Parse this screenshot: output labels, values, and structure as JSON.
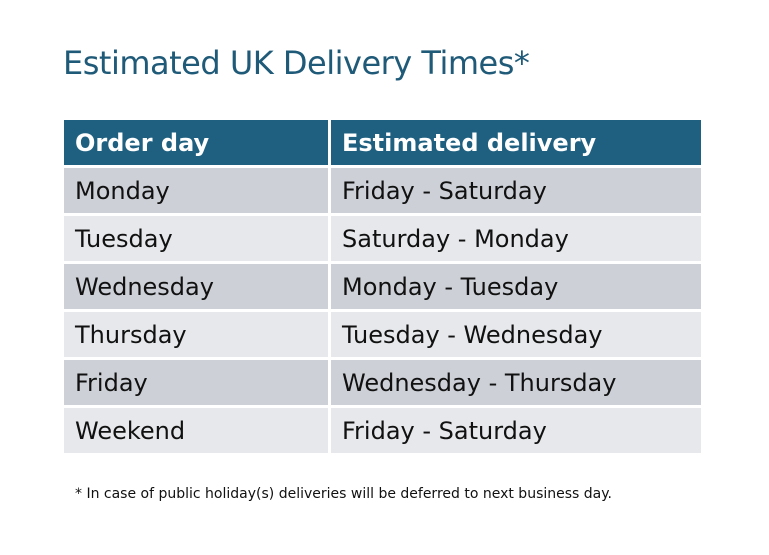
{
  "title": "Estimated UK Delivery Times*",
  "table": {
    "headers": [
      "Order day",
      "Estimated delivery"
    ],
    "rows": [
      [
        "Monday",
        "Friday - Saturday"
      ],
      [
        "Tuesday",
        "Saturday - Monday"
      ],
      [
        "Wednesday",
        "Monday - Tuesday"
      ],
      [
        "Thursday",
        "Tuesday - Wednesday"
      ],
      [
        "Friday",
        "Wednesday - Thursday"
      ],
      [
        "Weekend",
        "Friday - Saturday"
      ]
    ]
  },
  "footnote": "* In case of public holiday(s) deliveries will be deferred to next business day.",
  "colors": {
    "header": "#1f6080",
    "title": "#1f5a78",
    "row_dark": "#cdd1d7",
    "row_light": "#e6e8eb"
  }
}
